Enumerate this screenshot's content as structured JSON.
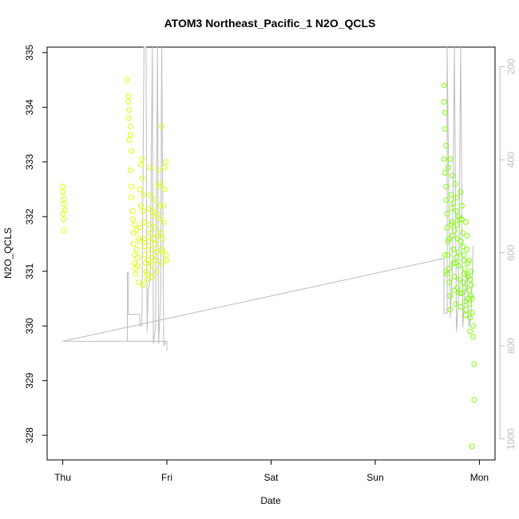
{
  "chart_data": {
    "type": "scatter",
    "title": "ATOM3 Northeast_Pacific_1 N2O_QCLS",
    "xlabel": "Date",
    "ylabel": "N2O_QCLS",
    "x_ticks": [
      "Thu",
      "Fri",
      "Sat",
      "Sun",
      "Mon"
    ],
    "xlim": [
      -0.15,
      4.15
    ],
    "ylim": [
      327.55,
      335.1
    ],
    "y_ticks": [
      328,
      329,
      330,
      331,
      332,
      333,
      334,
      335
    ],
    "y2_ticks": [
      200,
      400,
      600,
      800,
      1000
    ],
    "y2lim": [
      1045,
      158
    ],
    "grid": false,
    "colors": {
      "axis": "#000000",
      "altitude_line": "#bdbdbd",
      "marker_early": "#ddff00",
      "marker_late": "#7fff00"
    },
    "series": [
      {
        "values": [
          [
            0.0,
            332.55
          ],
          [
            0.0,
            332.45
          ],
          [
            0.01,
            332.32
          ],
          [
            0.01,
            332.23
          ],
          [
            0.0,
            332.05
          ],
          [
            0.01,
            331.95
          ],
          [
            0.01,
            331.75
          ],
          [
            0.02,
            332.12
          ],
          [
            0.62,
            334.5
          ],
          [
            0.63,
            334.2
          ],
          [
            0.63,
            334.1
          ],
          [
            0.64,
            333.95
          ],
          [
            0.63,
            333.8
          ],
          [
            0.65,
            333.65
          ],
          [
            0.65,
            333.5
          ],
          [
            0.64,
            333.4
          ],
          [
            0.66,
            333.2
          ],
          [
            0.65,
            332.85
          ],
          [
            0.66,
            332.55
          ],
          [
            0.66,
            332.35
          ],
          [
            0.67,
            332.1
          ],
          [
            0.67,
            331.95
          ],
          [
            0.68,
            331.7
          ],
          [
            0.68,
            331.5
          ],
          [
            0.69,
            331.3
          ],
          [
            0.69,
            331.15
          ],
          [
            0.7,
            331.05
          ],
          [
            0.7,
            330.95
          ],
          [
            0.71,
            331.4
          ],
          [
            0.72,
            331.25
          ],
          [
            0.72,
            331.1
          ],
          [
            0.73,
            331.6
          ],
          [
            0.74,
            331.8
          ],
          [
            0.74,
            332.5
          ],
          [
            0.75,
            332.2
          ],
          [
            0.75,
            332.95
          ],
          [
            0.76,
            333.05
          ],
          [
            0.76,
            332.7
          ],
          [
            0.77,
            332.4
          ],
          [
            0.77,
            332.1
          ],
          [
            0.78,
            331.9
          ],
          [
            0.78,
            331.6
          ],
          [
            0.79,
            331.45
          ],
          [
            0.79,
            331.3
          ],
          [
            0.8,
            331.15
          ],
          [
            0.8,
            331.0
          ],
          [
            0.81,
            330.85
          ],
          [
            0.81,
            330.95
          ],
          [
            0.82,
            331.2
          ],
          [
            0.82,
            331.55
          ],
          [
            0.83,
            331.85
          ],
          [
            0.83,
            332.15
          ],
          [
            0.84,
            332.4
          ],
          [
            0.84,
            331.7
          ],
          [
            0.85,
            331.4
          ],
          [
            0.85,
            331.1
          ],
          [
            0.86,
            330.9
          ],
          [
            0.86,
            331.25
          ],
          [
            0.87,
            331.6
          ],
          [
            0.87,
            332.0
          ],
          [
            0.88,
            332.3
          ],
          [
            0.88,
            331.8
          ],
          [
            0.89,
            331.5
          ],
          [
            0.89,
            331.2
          ],
          [
            0.9,
            331.0
          ],
          [
            0.9,
            331.35
          ],
          [
            0.91,
            331.65
          ],
          [
            0.91,
            332.05
          ],
          [
            0.92,
            332.55
          ],
          [
            0.92,
            332.85
          ],
          [
            0.93,
            332.6
          ],
          [
            0.93,
            332.2
          ],
          [
            0.94,
            331.95
          ],
          [
            0.94,
            331.7
          ],
          [
            0.95,
            331.4
          ],
          [
            0.95,
            331.15
          ],
          [
            0.96,
            331.35
          ],
          [
            0.96,
            331.6
          ],
          [
            0.97,
            331.9
          ],
          [
            0.97,
            332.2
          ],
          [
            0.98,
            332.5
          ],
          [
            0.98,
            332.9
          ],
          [
            0.99,
            333.0
          ],
          [
            0.99,
            331.3
          ],
          [
            1.0,
            331.2
          ],
          [
            0.95,
            333.65
          ],
          [
            0.84,
            332.9
          ],
          [
            0.86,
            332.1
          ],
          [
            0.74,
            331.55
          ],
          [
            0.71,
            331.75
          ],
          [
            0.69,
            331.85
          ],
          [
            0.73,
            330.8
          ],
          [
            0.77,
            330.75
          ]
        ]
      },
      {
        "values": [
          [
            3.66,
            334.4
          ],
          [
            3.66,
            334.1
          ],
          [
            3.67,
            333.9
          ],
          [
            3.67,
            333.6
          ],
          [
            3.68,
            333.3
          ],
          [
            3.66,
            333.05
          ],
          [
            3.67,
            332.8
          ],
          [
            3.68,
            332.55
          ],
          [
            3.68,
            332.3
          ],
          [
            3.69,
            332.05
          ],
          [
            3.69,
            331.8
          ],
          [
            3.7,
            331.55
          ],
          [
            3.7,
            331.3
          ],
          [
            3.71,
            331.05
          ],
          [
            3.71,
            330.8
          ],
          [
            3.72,
            330.55
          ],
          [
            3.72,
            330.3
          ],
          [
            3.73,
            332.4
          ],
          [
            3.73,
            332.15
          ],
          [
            3.74,
            331.9
          ],
          [
            3.74,
            331.65
          ],
          [
            3.75,
            331.4
          ],
          [
            3.75,
            331.15
          ],
          [
            3.76,
            330.9
          ],
          [
            3.76,
            330.65
          ],
          [
            3.77,
            330.4
          ],
          [
            3.77,
            332.6
          ],
          [
            3.78,
            332.35
          ],
          [
            3.78,
            332.1
          ],
          [
            3.79,
            331.85
          ],
          [
            3.79,
            331.6
          ],
          [
            3.8,
            331.35
          ],
          [
            3.8,
            331.1
          ],
          [
            3.81,
            330.85
          ],
          [
            3.81,
            330.6
          ],
          [
            3.82,
            330.35
          ],
          [
            3.82,
            332.45
          ],
          [
            3.83,
            332.2
          ],
          [
            3.83,
            331.95
          ],
          [
            3.84,
            331.7
          ],
          [
            3.84,
            331.45
          ],
          [
            3.85,
            331.2
          ],
          [
            3.85,
            330.95
          ],
          [
            3.86,
            330.7
          ],
          [
            3.86,
            330.45
          ],
          [
            3.87,
            330.2
          ],
          [
            3.87,
            331.9
          ],
          [
            3.88,
            331.65
          ],
          [
            3.88,
            331.4
          ],
          [
            3.89,
            331.15
          ],
          [
            3.89,
            330.9
          ],
          [
            3.9,
            330.65
          ],
          [
            3.9,
            330.4
          ],
          [
            3.91,
            330.15
          ],
          [
            3.91,
            329.9
          ],
          [
            3.92,
            331.0
          ],
          [
            3.92,
            330.75
          ],
          [
            3.93,
            330.5
          ],
          [
            3.93,
            330.25
          ],
          [
            3.94,
            330.0
          ],
          [
            3.94,
            329.8
          ],
          [
            3.95,
            329.3
          ],
          [
            3.95,
            328.65
          ],
          [
            3.93,
            327.8
          ],
          [
            3.67,
            331.3
          ],
          [
            3.68,
            331.0
          ],
          [
            3.7,
            332.9
          ],
          [
            3.72,
            333.05
          ],
          [
            3.74,
            332.75
          ],
          [
            3.76,
            331.75
          ],
          [
            3.78,
            331.25
          ],
          [
            3.8,
            332.0
          ],
          [
            3.82,
            331.55
          ],
          [
            3.84,
            330.8
          ],
          [
            3.86,
            331.05
          ],
          [
            3.88,
            330.95
          ],
          [
            3.9,
            331.2
          ],
          [
            3.92,
            330.55
          ],
          [
            3.69,
            330.95
          ],
          [
            3.71,
            331.6
          ],
          [
            3.73,
            331.85
          ],
          [
            3.75,
            332.25
          ],
          [
            3.77,
            331.15
          ],
          [
            3.79,
            330.7
          ],
          [
            3.81,
            331.95
          ],
          [
            3.83,
            330.6
          ],
          [
            3.85,
            331.3
          ],
          [
            3.87,
            330.3
          ],
          [
            3.89,
            330.5
          ],
          [
            3.91,
            330.85
          ]
        ]
      }
    ],
    "altitude": {
      "values": [
        [
          0.0,
          790
        ],
        [
          0.62,
          790
        ],
        [
          0.62,
          643
        ],
        [
          0.63,
          643
        ],
        [
          0.63,
          732
        ],
        [
          0.74,
          732
        ],
        [
          0.74,
          757
        ],
        [
          0.76,
          757
        ],
        [
          0.78,
          50
        ],
        [
          0.8,
          77
        ],
        [
          0.81,
          770
        ],
        [
          0.82,
          680
        ],
        [
          0.84,
          660
        ],
        [
          0.86,
          50
        ],
        [
          0.87,
          795
        ],
        [
          0.89,
          760
        ],
        [
          0.91,
          50
        ],
        [
          0.92,
          796
        ],
        [
          0.94,
          700
        ],
        [
          0.95,
          50
        ],
        [
          0.97,
          800
        ],
        [
          0.99,
          790
        ],
        [
          1.0,
          790
        ],
        [
          1.0,
          810
        ],
        [
          1.0,
          790
        ],
        [
          0.0,
          790
        ],
        [
          3.66,
          612
        ],
        [
          3.66,
          730
        ],
        [
          3.69,
          730
        ],
        [
          3.69,
          70
        ],
        [
          3.72,
          740
        ],
        [
          3.74,
          640
        ],
        [
          3.76,
          50
        ],
        [
          3.78,
          770
        ],
        [
          3.8,
          700
        ],
        [
          3.82,
          60
        ],
        [
          3.84,
          760
        ],
        [
          3.86,
          690
        ],
        [
          3.88,
          640
        ],
        [
          3.9,
          760
        ],
        [
          3.92,
          735
        ],
        [
          3.94,
          585
        ]
      ]
    }
  }
}
